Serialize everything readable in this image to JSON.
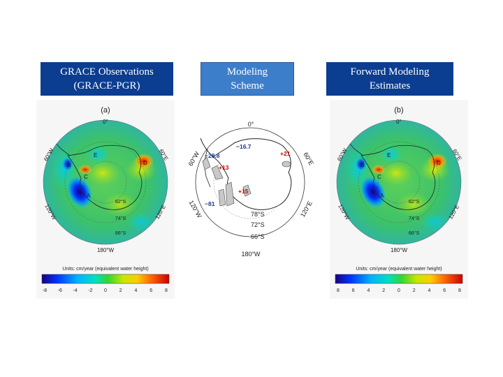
{
  "headers": {
    "left": [
      "GRACE Observations",
      "(GRACE-PGR)"
    ],
    "middle": [
      "Modeling",
      "Scheme"
    ],
    "right": [
      "Forward Modeling",
      "Estimates"
    ]
  },
  "map_a": {
    "panel_label": "(a)",
    "lon_labels": {
      "top": "0°",
      "top_left": "60°W",
      "top_right": "60°E",
      "bottom_left": "120°W",
      "bottom_right": "120°E",
      "bottom": "180°W"
    },
    "lat_labels": [
      "82°S",
      "74°S",
      "66°S"
    ],
    "region_labels": [
      "A",
      "B",
      "C",
      "D",
      "E"
    ],
    "units": "Units: cm/year (equivalent water height)",
    "colorbar_ticks": [
      "-8",
      "-6",
      "-4",
      "-2",
      "0",
      "2",
      "4",
      "6",
      "8"
    ]
  },
  "map_b": {
    "panel_label": "(b)",
    "lon_labels": {
      "top": "0°",
      "top_left": "60°W",
      "top_right": "60°E",
      "bottom_left": "120°W",
      "bottom_right": "120°E",
      "bottom": "180°W"
    },
    "lat_labels": [
      "82°S",
      "74°S",
      "66°S"
    ],
    "region_labels": [
      "A",
      "B",
      "C",
      "D",
      "E"
    ],
    "units": "Units: cm/year (equivalent water height)",
    "colorbar_ticks": [
      "8",
      "6",
      "4",
      "2",
      "0",
      "2",
      "4",
      "6",
      "8"
    ]
  },
  "scheme": {
    "lon_labels": {
      "top": "0°",
      "top_left": "60°W",
      "top_right": "60°E",
      "bottom_left": "120°W",
      "bottom_right": "120°E",
      "bottom": "180°W"
    },
    "lat_labels": [
      "78°S",
      "72°S",
      "66°S"
    ],
    "values": {
      "v1": "−16.7",
      "v2": "−28.8",
      "v3": "+13",
      "v4": "+21",
      "v5": "+15",
      "v6": "−81"
    }
  },
  "colors": {
    "header_dark": "#0b3d91",
    "header_light": "#3d7ecb",
    "positive_value": "#cc0000",
    "negative_value": "#1a3a8a"
  }
}
